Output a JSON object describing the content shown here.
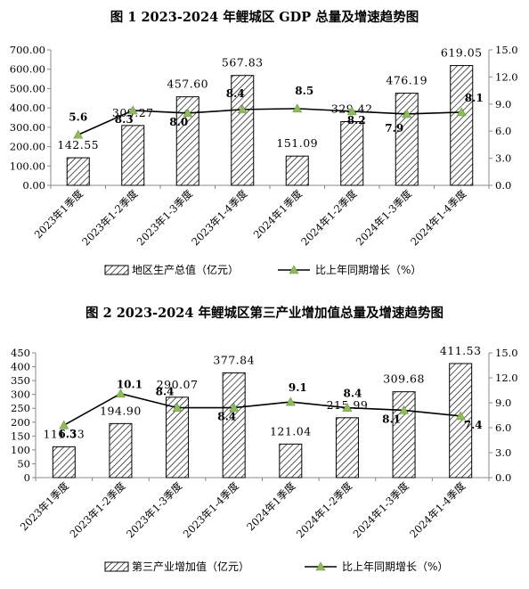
{
  "chart_data": [
    {
      "type": "bar",
      "title": "图 1 2023-2024 年鲤城区 GDP 总量及增速趋势图",
      "categories": [
        "2023年1季度",
        "2023年1-2季度",
        "2023年1-3季度",
        "2023年1-4季度",
        "2024年1季度",
        "2024年1-2季度",
        "2024年1-3季度",
        "2024年1-4季度"
      ],
      "series": [
        {
          "name": "地区生产总值（亿元）",
          "type": "bar",
          "axis": "left",
          "values": [
            142.55,
            309.27,
            457.6,
            567.83,
            151.09,
            329.42,
            476.19,
            619.05
          ]
        },
        {
          "name": "比上年同期增长（%）",
          "type": "line",
          "axis": "right",
          "values": [
            5.6,
            8.3,
            8.0,
            8.4,
            8.5,
            8.2,
            7.9,
            8.1
          ]
        }
      ],
      "bar_labels": [
        "142.55",
        "309.27",
        "457.60",
        "567.83",
        "151.09",
        "329.42",
        "476.19",
        "619.05"
      ],
      "line_labels": [
        "5.6",
        "8.3",
        "8.0",
        "8.4",
        "8.5",
        "8.2",
        "7.9",
        "8.1"
      ],
      "ylim_left": [
        0,
        700
      ],
      "yticks_left": [
        "0.00",
        "100.00",
        "200.00",
        "300.00",
        "400.00",
        "500.00",
        "600.00",
        "700.00"
      ],
      "ylim_right": [
        0,
        15
      ],
      "yticks_right": [
        "0.0",
        "3.0",
        "6.0",
        "9.0",
        "12.0",
        "15.0"
      ],
      "legend_position": "bottom",
      "colors": {
        "bar_hatch": "#000000",
        "line": "#000000",
        "marker": "#8fbc5a"
      }
    },
    {
      "type": "bar",
      "title": "图 2 2023-2024 年鲤城区第三产业增加值总量及增速趋势图",
      "categories": [
        "2023年1季度",
        "2023年1-2季度",
        "2023年1-3季度",
        "2023年1-4季度",
        "2024年1季度",
        "2024年1-2季度",
        "2024年1-3季度",
        "2024年1-4季度"
      ],
      "series": [
        {
          "name": "第三产业增加值（亿元）",
          "type": "bar",
          "axis": "left",
          "values": [
            111.33,
            194.9,
            290.07,
            377.84,
            121.04,
            215.99,
            309.68,
            411.53
          ]
        },
        {
          "name": "比上年同期增长（%）",
          "type": "line",
          "axis": "right",
          "values": [
            6.3,
            10.1,
            8.4,
            8.4,
            9.1,
            8.4,
            8.1,
            7.4
          ]
        }
      ],
      "bar_labels": [
        "111.33",
        "194.90",
        "290.07",
        "377.84",
        "121.04",
        "215.99",
        "309.68",
        "411.53"
      ],
      "line_labels": [
        "6.3",
        "10.1",
        "8.4",
        "8.4",
        "9.1",
        "8.4",
        "8.1",
        "7.4"
      ],
      "ylim_left": [
        0,
        450
      ],
      "yticks_left": [
        "0",
        "50",
        "100",
        "150",
        "200",
        "250",
        "300",
        "350",
        "400",
        "450"
      ],
      "ylim_right": [
        0,
        15
      ],
      "yticks_right": [
        "0.0",
        "3.0",
        "6.0",
        "9.0",
        "12.0",
        "15.0"
      ],
      "legend_position": "bottom",
      "colors": {
        "bar_hatch": "#000000",
        "line": "#000000",
        "marker": "#8fbc5a"
      }
    }
  ]
}
